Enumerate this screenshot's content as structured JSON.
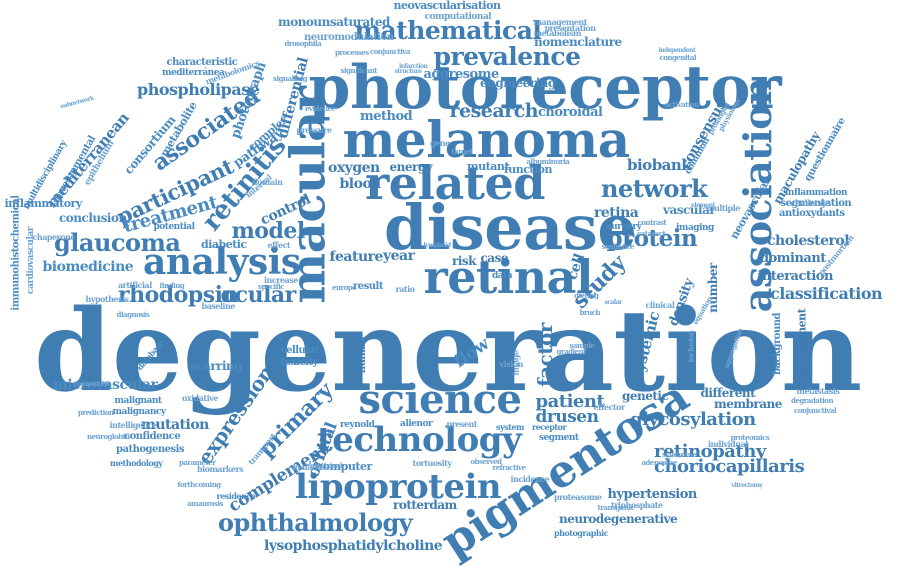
{
  "colors": {
    "primary": "#3f7db3",
    "secondary": "#4a8bc2",
    "light": "#6ea3d1"
  },
  "words": [
    "degeneration",
    "photoreceptor",
    "melanoma",
    "disease",
    "macular",
    "related",
    "retinal",
    "analysis",
    "pigmentosa",
    "association",
    "science",
    "technology",
    "lipoprotein",
    "network",
    "glaucoma",
    "retinitis",
    "ophthalmology",
    "mathematical",
    "prevalence",
    "research",
    "participant",
    "protein",
    "model",
    "ocular",
    "study",
    "rhodopsin",
    "treatment",
    "associated",
    "expression",
    "primary",
    "factor",
    "flow",
    "patient",
    "drusen",
    "choriocapillaris",
    "retinopathy",
    "glycosylation",
    "classification",
    "complement",
    "biomedicine",
    "microvascular",
    "mutation",
    "scarring",
    "rotterdam",
    "neurodegenerative",
    "lysophosphatidylcholine",
    "hypertension",
    "cholesterol",
    "dominant",
    "interaction",
    "vascular",
    "consensus",
    "biobank",
    "retina",
    "choroidal",
    "method",
    "phospholipase",
    "mediterranean",
    "consortium",
    "metabolite",
    "photograph",
    "differential",
    "aggresome",
    "nomenclature",
    "engineering",
    "monounsaturated",
    "neovascularisation",
    "neuromodulation",
    "computational",
    "management",
    "metabolism",
    "presentation",
    "characteristic",
    "mediterránea",
    "metabolomics",
    "pathway",
    "complex",
    "retina-density",
    "membrane",
    "different",
    "orbital",
    "reynold",
    "alienor",
    "present",
    "confidence",
    "pathogenesis",
    "methodology",
    "biomarkers",
    "computer",
    "tortuosity",
    "observed",
    "refractive",
    "incidence",
    "proteasome",
    "triphosphate",
    "photographic",
    "neovascular",
    "maculopathy",
    "segmentation",
    "antioxydants",
    "inflammation",
    "challenge",
    "questionnaire",
    "development",
    "background",
    "postmortem",
    "oxygen",
    "energy",
    "mutant",
    "function",
    "blood",
    "control",
    "diabetic",
    "effect",
    "potential",
    "conclusion",
    "inflammatory",
    "immunohistochemical",
    "cardiovascular",
    "chaperone",
    "multidisciplinary",
    "developmental",
    "epithelium",
    "subnetwork",
    "feature",
    "year",
    "case",
    "risk",
    "data",
    "result",
    "cell",
    "density",
    "number",
    "systemic",
    "genetic",
    "different",
    "membrane",
    "imaging",
    "surgery",
    "cellular",
    "toxicity",
    "domain",
    "interval",
    "malignancy",
    "malignant",
    "intelligence",
    "neuroglobin",
    "prediction",
    "competition",
    "oxidative",
    "transport",
    "maladies",
    "electrical",
    "residence",
    "amaurosis",
    "forthcoming",
    "parameter",
    "system",
    "receptor",
    "segment",
    "effector",
    "individual",
    "proteomics",
    "metastasis",
    "degradation",
    "conjunctival",
    "vitrectomy",
    "adenosine",
    "syndrome",
    "transgenic",
    "congenital",
    "independent",
    "presentation",
    "drosophila",
    "conjunctiva",
    "infarction",
    "processes",
    "significant",
    "structure",
    "signalling",
    "pressure",
    "evidence",
    "artificial",
    "finding",
    "baseline",
    "hypothesis",
    "diagnosis",
    "database",
    "increase",
    "specific",
    "europe",
    "human",
    "vision",
    "sample",
    "scalar",
    "clinical",
    "cataract",
    "multiple",
    "aggregation",
    "equation",
    "inclusion",
    "ratio",
    "sequence",
    "image",
    "dieting",
    "contrast",
    "gene",
    "target",
    "common",
    "activation",
    "prolonged",
    "physiology",
    "albuminuria",
    "element",
    "lymphoid",
    "gradient",
    "bruch",
    "macula"
  ]
}
